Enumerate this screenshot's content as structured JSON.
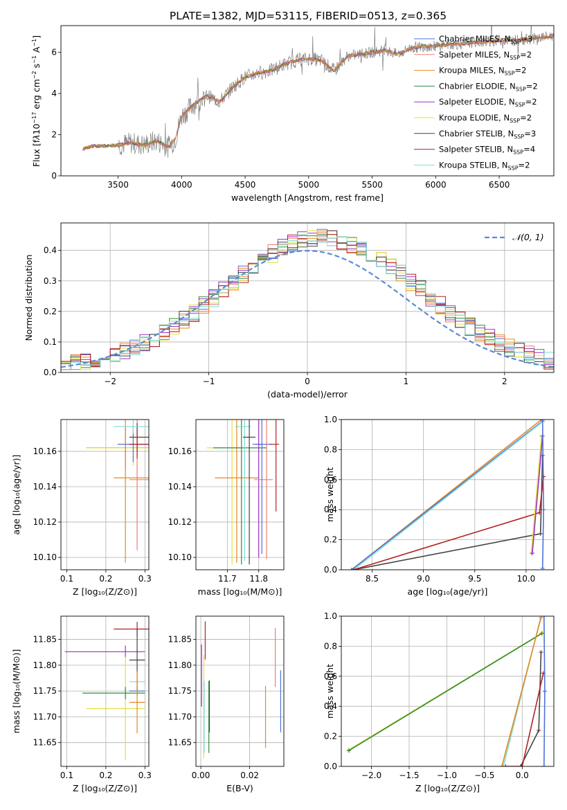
{
  "figure_title": "PLATE=1382, MJD=53115, FIBERID=0513, z=0.365",
  "colors": {
    "gray": "#7f7f7f",
    "series": [
      "#4c72d8",
      "#f07c6c",
      "#e8871e",
      "#2e8b3a",
      "#9b30c8",
      "#e4e040",
      "#444444",
      "#b22222",
      "#7fdcd4"
    ],
    "gaussian": "#5a8ad8"
  },
  "chart_data": [
    {
      "id": "spectrum",
      "type": "line",
      "title": "PLATE=1382, MJD=53115, FIBERID=0513, z=0.365",
      "xlabel": "wavelength [Angstrom, rest frame]",
      "ylabel": "Flux [f_λ 10^−17 erg cm^−2 s^−1 A^−1]",
      "xlim": [
        3050,
        6930
      ],
      "ylim": [
        0,
        7.3
      ],
      "xticks": [
        3500,
        4000,
        4500,
        5000,
        5500,
        6000,
        6500
      ],
      "yticks": [
        0,
        2,
        4,
        6
      ],
      "grid": false,
      "legend_position": "top-right",
      "legend": [
        {
          "label": "Chabrier MILES, N",
          "sub": "SSP",
          "tail": "=3"
        },
        {
          "label": "Salpeter MILES, N",
          "sub": "SSP",
          "tail": "=2"
        },
        {
          "label": "Kroupa MILES, N",
          "sub": "SSP",
          "tail": "=2"
        },
        {
          "label": "Chabrier ELODIE, N",
          "sub": "SSP",
          "tail": "=2"
        },
        {
          "label": "Salpeter ELODIE, N",
          "sub": "SSP",
          "tail": "=2"
        },
        {
          "label": "Kroupa ELODIE, N",
          "sub": "SSP",
          "tail": "=2"
        },
        {
          "label": "Chabrier STELIB, N",
          "sub": "SSP",
          "tail": "=3"
        },
        {
          "label": "Salpeter STELIB, N",
          "sub": "SSP",
          "tail": "=4"
        },
        {
          "label": "Kroupa STELIB, N",
          "sub": "SSP",
          "tail": "=2"
        }
      ],
      "continuum_x": [
        3220,
        3300,
        3400,
        3500,
        3600,
        3700,
        3800,
        3900,
        3950,
        4000,
        4100,
        4200,
        4300,
        4400,
        4500,
        4600,
        4700,
        4800,
        4900,
        5000,
        5100,
        5200,
        5300,
        5400,
        5500,
        5600,
        5700,
        5800,
        5900,
        6000,
        6100,
        6200,
        6300,
        6400,
        6500,
        6600,
        6700,
        6800,
        6930
      ],
      "continuum_y": [
        1.3,
        1.45,
        1.45,
        1.5,
        1.6,
        1.5,
        1.7,
        1.4,
        1.8,
        2.9,
        3.5,
        3.9,
        3.6,
        4.3,
        4.8,
        5.0,
        5.1,
        5.4,
        5.6,
        5.7,
        5.6,
        5.1,
        5.8,
        5.9,
        6.0,
        6.1,
        5.9,
        6.2,
        6.3,
        6.3,
        6.4,
        6.4,
        6.5,
        6.5,
        6.6,
        6.6,
        6.6,
        6.7,
        6.8
      ]
    },
    {
      "id": "residuals",
      "type": "line",
      "xlabel": "(data-model)/error",
      "ylabel": "Normed distribution",
      "xlim": [
        -2.5,
        2.5
      ],
      "ylim": [
        0,
        0.49
      ],
      "xticks": [
        -2,
        -1,
        0,
        1,
        2
      ],
      "yticks": [
        0.0,
        0.1,
        0.2,
        0.3,
        0.4
      ],
      "grid": true,
      "legend_position": "top-right",
      "legend": [
        "𝒩(0, 1)"
      ]
    },
    {
      "id": "age_vs_z",
      "type": "scatter",
      "xlabel": "Z [log₁₀(Z/Z⊙)]",
      "ylabel": "age  [log₁₀(age/yr)]",
      "xlim": [
        0.085,
        0.31
      ],
      "ylim": [
        10.093,
        10.178
      ],
      "xticks": [
        0.1,
        0.2,
        0.3
      ],
      "yticks": [
        10.1,
        10.12,
        10.14,
        10.16
      ],
      "grid": true,
      "points": [
        {
          "x": 0.25,
          "y": 10.162,
          "xerr": [
            0.1,
            0.06
          ],
          "yerr": 0.012,
          "color": 4
        },
        {
          "x": 0.27,
          "y": 10.162,
          "xerr": [
            0.12,
            0.04
          ],
          "yerr": 0.01,
          "color": 5
        },
        {
          "x": 0.25,
          "y": 10.145,
          "xerr": [
            0.03,
            0.06
          ],
          "yerr": 0.048,
          "color": 2
        },
        {
          "x": 0.27,
          "y": 10.164,
          "xerr": [
            0.04,
            0.04
          ],
          "yerr": 0.01,
          "color": 0
        },
        {
          "x": 0.28,
          "y": 10.144,
          "xerr": [
            0.02,
            0.03
          ],
          "yerr": 0.04,
          "color": 1
        },
        {
          "x": 0.28,
          "y": 10.168,
          "xerr": [
            0.02,
            0.03
          ],
          "yerr": 0.008,
          "color": 6
        },
        {
          "x": 0.27,
          "y": 10.174,
          "xerr": [
            0.05,
            0.04
          ],
          "yerr": 0.004,
          "color": 8
        },
        {
          "x": 0.28,
          "y": 10.164,
          "xerr": [
            0.02,
            0.03
          ],
          "yerr": 0.008,
          "color": 7
        }
      ]
    },
    {
      "id": "age_vs_mass",
      "type": "scatter",
      "xlabel": "mass [log₁₀(M/M⊙)]",
      "ylabel": "",
      "xlim": [
        11.6,
        11.88
      ],
      "ylim": [
        10.093,
        10.178
      ],
      "xticks": [
        11.7,
        11.8
      ],
      "yticks": [
        10.1,
        10.12,
        10.14,
        10.16
      ],
      "grid": true,
      "points": [
        {
          "x": 11.715,
          "y": 10.162,
          "xerr": [
            0.08,
            0.02
          ],
          "yerr": 0.066,
          "color": 5
        },
        {
          "x": 11.73,
          "y": 10.145,
          "xerr": [
            0.07,
            0.07
          ],
          "yerr": 0.048,
          "color": 2
        },
        {
          "x": 11.745,
          "y": 10.162,
          "xerr": [
            0.09,
            0.08
          ],
          "yerr": 0.066,
          "color": 3
        },
        {
          "x": 11.755,
          "y": 10.174,
          "xerr": [
            0.03,
            0.02
          ],
          "yerr": 0.076,
          "color": 8
        },
        {
          "x": 11.77,
          "y": 10.168,
          "xerr": [
            0.02,
            0.02
          ],
          "yerr": 0.072,
          "color": 6
        },
        {
          "x": 11.8,
          "y": 10.164,
          "xerr": [
            0.01,
            0.01
          ],
          "yerr": 0.064,
          "color": 4
        },
        {
          "x": 11.825,
          "y": 10.144,
          "xerr": [
            0.04,
            0.02
          ],
          "yerr": 0.045,
          "color": 1
        },
        {
          "x": 11.81,
          "y": 10.164,
          "xerr": [
            0.03,
            0.03
          ],
          "yerr": 0.062,
          "color": 0
        },
        {
          "x": 11.855,
          "y": 10.164,
          "xerr": [
            0.02,
            0.01
          ],
          "yerr": 0.038,
          "color": 7
        }
      ]
    },
    {
      "id": "weight_vs_age",
      "type": "line",
      "xlabel": "age  [log₁₀(age/yr)]",
      "ylabel": "mass weight",
      "xlim": [
        8.2,
        10.27
      ],
      "ylim": [
        0,
        1.0
      ],
      "xticks": [
        8.5,
        9.0,
        9.5,
        10.0
      ],
      "yticks": [
        0.0,
        0.2,
        0.4,
        0.6,
        0.8,
        1.0
      ],
      "grid": true,
      "series": [
        {
          "x": [
            8.3,
            10.15
          ],
          "y": [
            0.0,
            1.0
          ],
          "color": 2
        },
        {
          "x": [
            8.3,
            10.16
          ],
          "y": [
            0.0,
            0.99
          ],
          "color": 0
        },
        {
          "x": [
            8.32,
            10.16
          ],
          "y": [
            0.0,
            0.985
          ],
          "color": 8
        },
        {
          "x": [
            8.32,
            10.14,
            10.16
          ],
          "y": [
            0.0,
            0.24,
            0.76
          ],
          "color": 6
        },
        {
          "x": [
            8.32,
            10.13,
            10.17
          ],
          "y": [
            0.0,
            0.38,
            0.62
          ],
          "color": 7
        },
        {
          "x": [
            10.05,
            10.15
          ],
          "y": [
            0.11,
            0.89
          ],
          "color": 5
        },
        {
          "x": [
            10.06,
            10.16
          ],
          "y": [
            0.11,
            0.89
          ],
          "color": 4
        },
        {
          "x": [
            10.16,
            10.17,
            10.16
          ],
          "y": [
            1.0,
            0.4,
            0.01
          ],
          "color": 0
        }
      ]
    },
    {
      "id": "mass_vs_z",
      "type": "scatter",
      "xlabel": "Z [log₁₀(Z/Z⊙)]",
      "ylabel": "mass [log₁₀(M/M⊙)]",
      "xlim": [
        0.085,
        0.31
      ],
      "ylim": [
        11.604,
        11.895
      ],
      "xticks": [
        0.1,
        0.2,
        0.3
      ],
      "yticks": [
        11.65,
        11.7,
        11.75,
        11.8,
        11.85
      ],
      "grid": true,
      "points": [
        {
          "x": 0.25,
          "y": 11.826,
          "xerr": [
            0.155,
            0.05
          ],
          "yerr": 0.012,
          "color": 4
        },
        {
          "x": 0.25,
          "y": 11.716,
          "xerr": [
            0.1,
            0.05
          ],
          "yerr": 0.1,
          "color": 5
        },
        {
          "x": 0.25,
          "y": 11.746,
          "xerr": [
            0.11,
            0.05
          ],
          "yerr": 0.012,
          "color": 3
        },
        {
          "x": 0.28,
          "y": 11.87,
          "xerr": [
            0.06,
            0.03
          ],
          "yerr": 0.014,
          "color": 7
        },
        {
          "x": 0.28,
          "y": 11.81,
          "xerr": [
            0.02,
            0.02
          ],
          "yerr": 0.06,
          "color": 6
        },
        {
          "x": 0.28,
          "y": 11.768,
          "xerr": [
            0.02,
            0.02
          ],
          "yerr": 0.01,
          "color": 8
        },
        {
          "x": 0.28,
          "y": 11.75,
          "xerr": [
            0.02,
            0.02
          ],
          "yerr": 0.01,
          "color": 0
        },
        {
          "x": 0.28,
          "y": 11.728,
          "xerr": [
            0.02,
            0.02
          ],
          "yerr": 0.06,
          "color": 2
        }
      ]
    },
    {
      "id": "mass_vs_ebv",
      "type": "scatter",
      "xlabel": "E(B-V)",
      "ylabel": "",
      "xlim": [
        -0.002,
        0.034
      ],
      "ylim": [
        11.604,
        11.895
      ],
      "xticks": [
        0.0,
        0.02
      ],
      "yticks": [
        11.65,
        11.7,
        11.75,
        11.8,
        11.85
      ],
      "grid": true,
      "points": [
        {
          "x": 0.0003,
          "y": 11.78,
          "yerr": 0.06,
          "color": 4
        },
        {
          "x": 0.0012,
          "y": 11.72,
          "yerr": 0.1,
          "color": 5
        },
        {
          "x": 0.0014,
          "y": 11.7,
          "yerr": 0.07,
          "color": 8
        },
        {
          "x": 0.0018,
          "y": 11.848,
          "yerr": 0.037,
          "color": 7
        },
        {
          "x": 0.0033,
          "y": 11.7,
          "yerr": 0.07,
          "color": 3
        },
        {
          "x": 0.0035,
          "y": 11.72,
          "yerr": 0.05,
          "color": 6
        },
        {
          "x": 0.0265,
          "y": 11.7,
          "yerr": 0.06,
          "color": 2
        },
        {
          "x": 0.0305,
          "y": 11.815,
          "yerr": 0.057,
          "color": 1
        },
        {
          "x": 0.0327,
          "y": 11.73,
          "yerr": 0.06,
          "color": 0
        }
      ]
    },
    {
      "id": "weight_vs_z",
      "type": "line",
      "xlabel": "Z [log₁₀(Z/Z⊙)]",
      "ylabel": "mass weight",
      "xlim": [
        -2.4,
        0.42
      ],
      "ylim": [
        0,
        1.0
      ],
      "xticks": [
        -2.0,
        -1.5,
        -1.0,
        -0.5,
        0.0
      ],
      "yticks": [
        0.0,
        0.2,
        0.4,
        0.6,
        0.8,
        1.0
      ],
      "grid": true,
      "series": [
        {
          "x": [
            -2.3,
            0.27
          ],
          "y": [
            0.11,
            0.89
          ],
          "color": 5
        },
        {
          "x": [
            -2.3,
            0.26
          ],
          "y": [
            0.105,
            0.885
          ],
          "color": 3
        },
        {
          "x": [
            -0.25,
            0.25
          ],
          "y": [
            0.0,
            1.0
          ],
          "color": 8
        },
        {
          "x": [
            -0.27,
            0.25
          ],
          "y": [
            0.0,
            0.99
          ],
          "color": 2
        },
        {
          "x": [
            -0.02,
            0.22,
            0.25
          ],
          "y": [
            0.0,
            0.24,
            0.76
          ],
          "color": 6
        },
        {
          "x": [
            -0.22,
            0.0,
            0.28
          ],
          "y": [
            0.0,
            0.0,
            0.62
          ],
          "color": 7
        },
        {
          "x": [
            0.29,
            0.3,
            0.29
          ],
          "y": [
            0.0,
            0.5,
            1.0
          ],
          "color": 0
        }
      ]
    }
  ]
}
